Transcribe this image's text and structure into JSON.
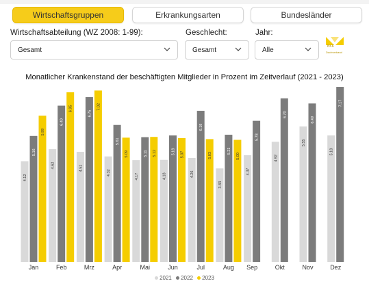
{
  "tabs": [
    {
      "label": "Wirtschaftsgruppen",
      "active": true
    },
    {
      "label": "Erkrankungsarten",
      "active": false
    },
    {
      "label": "Bundesländer",
      "active": false
    }
  ],
  "filters": {
    "abteilung": {
      "label": "Wirtschaftsabteilung (WZ 2008: 1-99):",
      "value": "Gesamt"
    },
    "geschlecht": {
      "label": "Geschlecht:",
      "value": "Gesamt"
    },
    "jahr": {
      "label": "Jahr:",
      "value": "Alle"
    }
  },
  "logo": {
    "text": "BKK",
    "subtext": "Dachverband"
  },
  "colors": {
    "2021": "#d9d9d9",
    "2022": "#7c7c7c",
    "2023": "#f5cd00",
    "accent": "#f6cc1a"
  },
  "chart_data": {
    "type": "bar",
    "title": "Monatlicher Krankenstand der beschäftigten Mitglieder in Prozent im Zeitverlauf (2021 - 2023)",
    "categories": [
      "Jan",
      "Feb",
      "Mrz",
      "Apr",
      "Mai",
      "Jun",
      "Jul",
      "Aug",
      "Sep",
      "Okt",
      "Nov",
      "Dez"
    ],
    "series": [
      {
        "name": "2021",
        "color": "#d9d9d9",
        "values": [
          4.12,
          4.62,
          4.51,
          4.32,
          4.17,
          4.18,
          4.26,
          3.83,
          4.37,
          4.92,
          5.55,
          5.18
        ]
      },
      {
        "name": "2022",
        "color": "#7c7c7c",
        "values": [
          5.16,
          6.4,
          6.75,
          5.61,
          5.11,
          5.18,
          6.19,
          5.21,
          5.78,
          6.7,
          6.49,
          7.17
        ]
      },
      {
        "name": "2023",
        "color": "#f5cd00",
        "values": [
          5.99,
          6.95,
          7.02,
          5.09,
          5.12,
          5.07,
          5.03,
          5.0,
          null,
          null,
          null,
          null
        ]
      }
    ],
    "ylim": [
      0,
      7.5
    ],
    "legend_position": "bottom",
    "grid": false
  }
}
